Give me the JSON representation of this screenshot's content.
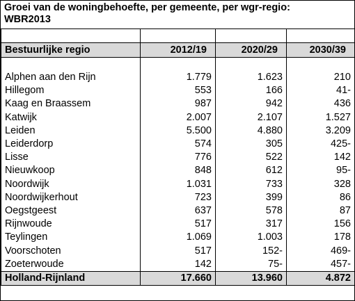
{
  "title_line1": "Groei van de woningbehoefte, per gemeente, per wgr-regio:",
  "title_line2": "WBR2013",
  "header": {
    "region_label": "Bestuurlijke regio",
    "years": [
      "2012/19",
      "2020/29",
      "2030/39"
    ]
  },
  "rows": [
    {
      "region": "Alphen aan den Rijn",
      "v1": "1.779",
      "v2": "1.623",
      "v3": "210"
    },
    {
      "region": "Hillegom",
      "v1": "553",
      "v2": "166",
      "v3": "41-"
    },
    {
      "region": "Kaag en Braassem",
      "v1": "987",
      "v2": "942",
      "v3": "436"
    },
    {
      "region": "Katwijk",
      "v1": "2.007",
      "v2": "2.107",
      "v3": "1.527"
    },
    {
      "region": "Leiden",
      "v1": "5.500",
      "v2": "4.880",
      "v3": "3.209"
    },
    {
      "region": "Leiderdorp",
      "v1": "574",
      "v2": "305",
      "v3": "425-"
    },
    {
      "region": "Lisse",
      "v1": "776",
      "v2": "522",
      "v3": "142"
    },
    {
      "region": "Nieuwkoop",
      "v1": "848",
      "v2": "612",
      "v3": "95-"
    },
    {
      "region": "Noordwijk",
      "v1": "1.031",
      "v2": "733",
      "v3": "328"
    },
    {
      "region": "Noordwijkerhout",
      "v1": "723",
      "v2": "399",
      "v3": "86"
    },
    {
      "region": "Oegstgeest",
      "v1": "637",
      "v2": "578",
      "v3": "87"
    },
    {
      "region": "Rijnwoude",
      "v1": "517",
      "v2": "317",
      "v3": "156"
    },
    {
      "region": "Teylingen",
      "v1": "1.069",
      "v2": "1.003",
      "v3": "178"
    },
    {
      "region": "Voorschoten",
      "v1": "517",
      "v2": "152-",
      "v3": "469-"
    },
    {
      "region": "Zoeterwoude",
      "v1": "142",
      "v2": "75-",
      "v3": "457-"
    }
  ],
  "total": {
    "region": "Holland-Rijnland",
    "v1": "17.660",
    "v2": "13.960",
    "v3": "4.872"
  },
  "colors": {
    "header_fill": "#d9d9d9",
    "border": "#000000"
  }
}
